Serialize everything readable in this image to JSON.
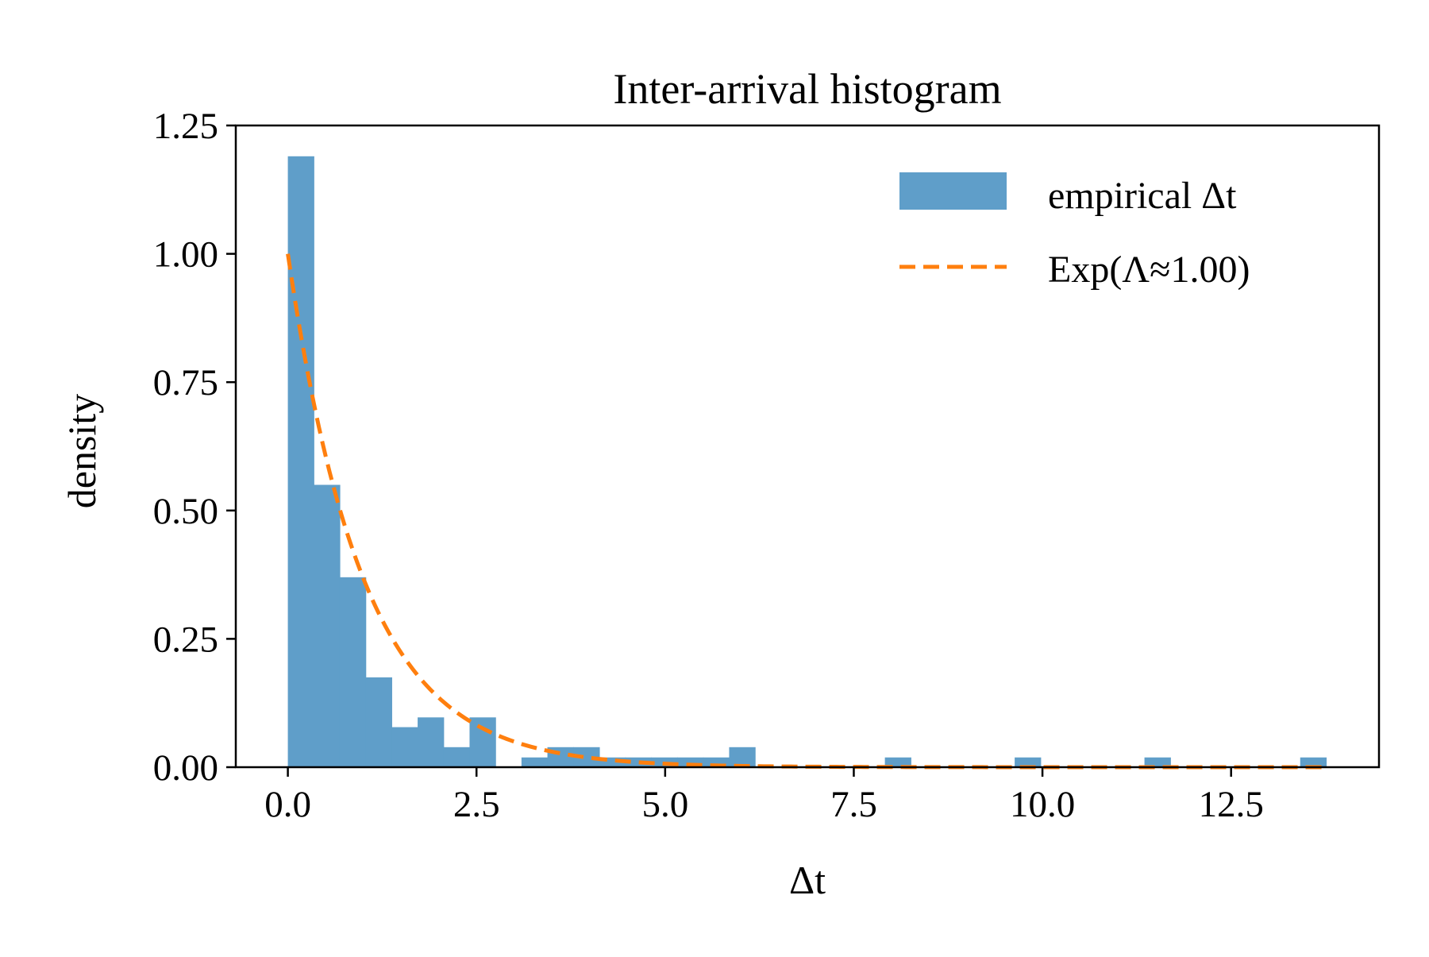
{
  "chart_data": {
    "type": "bar",
    "title": "Inter-arrival histogram",
    "xlabel": "Δt",
    "ylabel": "density",
    "xlim": [
      -0.69,
      14.46
    ],
    "ylim": [
      0,
      1.25
    ],
    "xticks": [
      0.0,
      2.5,
      5.0,
      7.5,
      10.0,
      12.5
    ],
    "xtick_labels": [
      "0.0",
      "2.5",
      "5.0",
      "7.5",
      "10.0",
      "12.5"
    ],
    "yticks": [
      0.0,
      0.25,
      0.5,
      0.75,
      1.0,
      1.25
    ],
    "ytick_labels": [
      "0.00",
      "0.25",
      "0.50",
      "0.75",
      "1.00",
      "1.25"
    ],
    "grid": false,
    "legend_position": "upper-right",
    "bin_width": 0.344,
    "bin_start": 0.0,
    "series": [
      {
        "name": "empirical Δt",
        "kind": "histogram",
        "color": "#5f9ec9",
        "values": [
          1.19,
          0.55,
          0.37,
          0.175,
          0.078,
          0.097,
          0.039,
          0.097,
          0.0,
          0.019,
          0.039,
          0.039,
          0.019,
          0.019,
          0.019,
          0.019,
          0.019,
          0.039,
          0.0,
          0.0,
          0.0,
          0.0,
          0.0,
          0.019,
          0.0,
          0.0,
          0.0,
          0.0,
          0.019,
          0.0,
          0.0,
          0.0,
          0.0,
          0.019,
          0.0,
          0.0,
          0.0,
          0.0,
          0.0,
          0.019
        ]
      },
      {
        "name": "Exp(Λ≈1.00)",
        "kind": "line",
        "style": "dashed",
        "color": "#ff7f0e",
        "rate": 1.0,
        "x_range": [
          0.0,
          13.8
        ]
      }
    ]
  }
}
